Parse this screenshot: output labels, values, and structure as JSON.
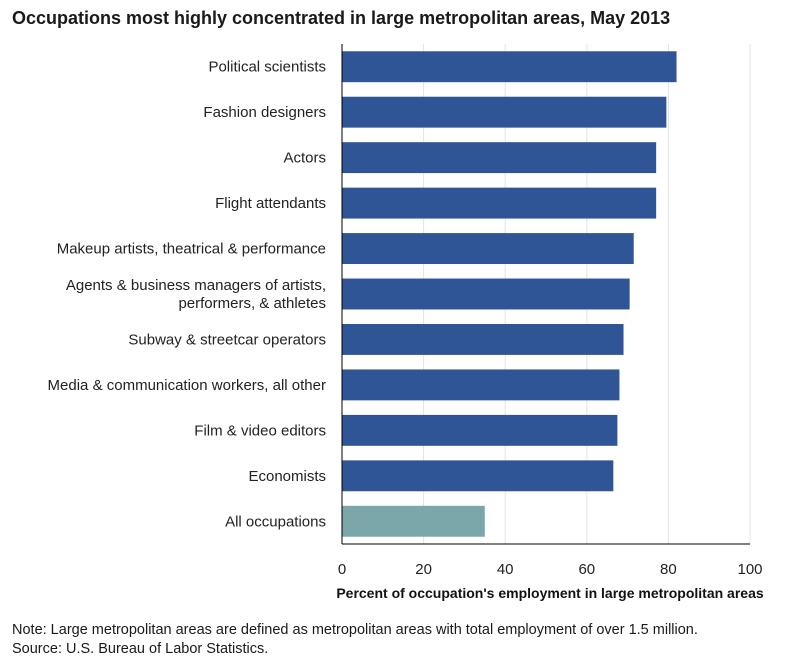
{
  "title": "Occupations most highly concentrated in large metropolitan areas, May 2013",
  "note": "Note: Large metropolitan areas are defined as metropolitan areas with total employment of over 1.5 million.",
  "source": "Source: U.S. Bureau of Labor Statistics.",
  "colors": {
    "primary": "#2f5597",
    "highlight": "#7ba7aa",
    "grid": "#e3e3e3"
  },
  "chart_data": {
    "type": "bar",
    "orientation": "horizontal",
    "title": "Occupations most highly concentrated in large metropolitan areas, May 2013",
    "xlabel": "Percent of occupation's employment in large metropolitan areas",
    "ylabel": "",
    "xlim": [
      0,
      100
    ],
    "xticks": [
      0,
      20,
      40,
      60,
      80,
      100
    ],
    "grid": true,
    "categories": [
      [
        "Political scientists"
      ],
      [
        "Fashion designers"
      ],
      [
        "Actors"
      ],
      [
        "Flight attendants"
      ],
      [
        "Makeup artists, theatrical & performance"
      ],
      [
        "Agents & business managers of artists,",
        "performers, & athletes"
      ],
      [
        "Subway & streetcar operators"
      ],
      [
        "Media & communication workers, all other"
      ],
      [
        "Film & video editors"
      ],
      [
        "Economists"
      ],
      [
        "All occupations"
      ]
    ],
    "values": [
      82,
      79.5,
      77,
      77,
      71.5,
      70.5,
      69,
      68,
      67.5,
      66.5,
      35
    ],
    "highlight_index": 10
  }
}
